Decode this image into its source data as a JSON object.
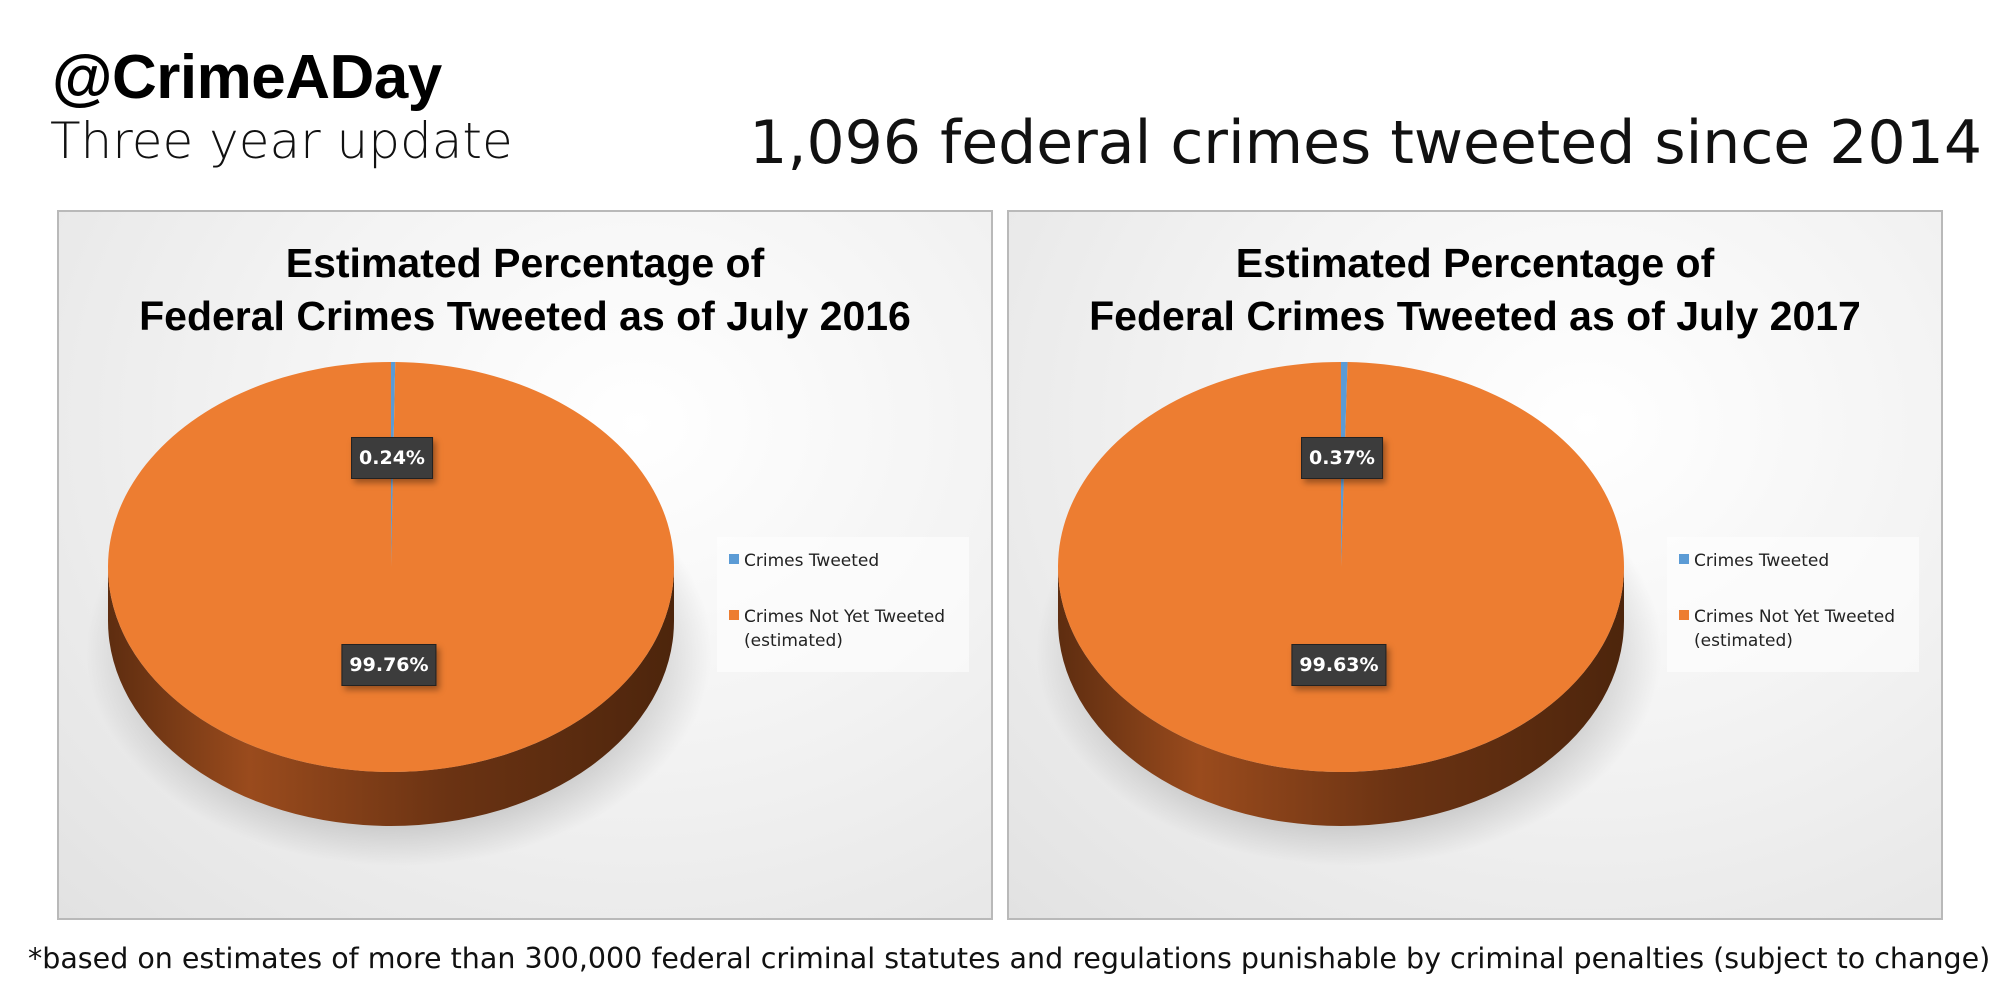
{
  "header": {
    "handle": "@CrimeADay",
    "subtitle": "Three year update",
    "headline": "1,096 federal crimes tweeted since 2014"
  },
  "footnote": "*based on estimates of more than 300,000 federal criminal statutes and regulations punishable by criminal penalties (subject to change)",
  "colors": {
    "tweeted": "#5b9bd5",
    "not_tweeted": "#ed7d31",
    "pie_side": "#7a3a15",
    "label_bg": "#3c3c3c"
  },
  "chart_data": [
    {
      "type": "pie",
      "title_lines": [
        "Estimated Percentage of",
        "Federal Crimes Tweeted as of July 2016"
      ],
      "categories": [
        "Crimes Tweeted",
        "Crimes Not Yet Tweeted (estimated)"
      ],
      "legend_lines": [
        [
          "Crimes Tweeted"
        ],
        [
          "Crimes Not Yet Tweeted",
          "(estimated)"
        ]
      ],
      "values": [
        0.24,
        99.76
      ],
      "data_labels": [
        "0.24%",
        "99.76%"
      ],
      "legend_position": "right"
    },
    {
      "type": "pie",
      "title_lines": [
        "Estimated Percentage of",
        "Federal Crimes Tweeted as of July 2017"
      ],
      "categories": [
        "Crimes Tweeted",
        "Crimes Not Yet Tweeted (estimated)"
      ],
      "legend_lines": [
        [
          "Crimes Tweeted"
        ],
        [
          "Crimes Not Yet Tweeted",
          "(estimated)"
        ]
      ],
      "values": [
        0.37,
        99.63
      ],
      "data_labels": [
        "0.37%",
        "99.63%"
      ],
      "legend_position": "right"
    }
  ]
}
